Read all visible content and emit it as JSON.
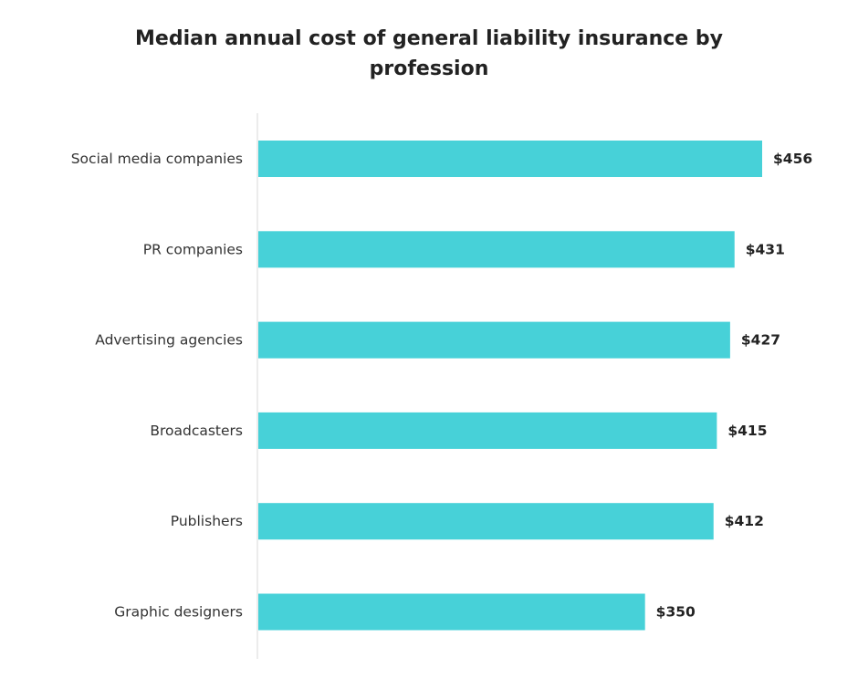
{
  "chart_data": {
    "type": "bar",
    "orientation": "horizontal",
    "title": "Median annual cost of general liability insurance by profession",
    "title_lines": [
      "Median annual cost of general liability insurance by",
      "profession"
    ],
    "categories": [
      "Social media companies",
      "PR companies",
      "Advertising agencies",
      "Broadcasters",
      "Publishers",
      "Graphic designers"
    ],
    "values": [
      456,
      431,
      427,
      415,
      412,
      350
    ],
    "value_labels": [
      "$456",
      "$431",
      "$427",
      "$415",
      "$412",
      "$350"
    ],
    "xlabel": "",
    "ylabel": "",
    "xlim": [
      0,
      456
    ],
    "grid": false,
    "legend": "none",
    "colors": {
      "bar": "#47D1D8",
      "axis": "#D9D9D9",
      "text": "#333333",
      "title": "#222222"
    }
  }
}
